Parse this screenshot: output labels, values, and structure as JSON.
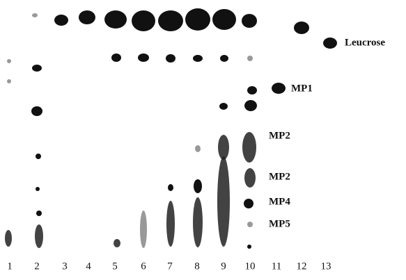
{
  "lanes": [
    "1",
    "2",
    "3",
    "4",
    "5",
    "6",
    "7",
    "8",
    "9",
    "10",
    "11",
    "12",
    "13"
  ],
  "annotations": [
    "Leucrose",
    "MP1",
    "MP2",
    "MP2",
    "MP4",
    "MP5"
  ]
}
